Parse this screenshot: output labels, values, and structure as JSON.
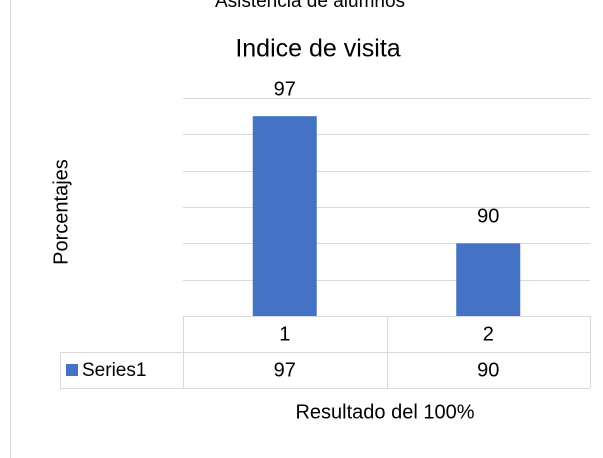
{
  "chart_data": {
    "type": "bar",
    "header_text": "Asistencia de alumnos",
    "title": "Indice de visita",
    "y_label": "Porcentajes",
    "x_label": "Resultado del 100%",
    "categories": [
      "1",
      "2"
    ],
    "series": [
      {
        "name": "Series1",
        "color": "#4472c4",
        "values": [
          97,
          90
        ]
      }
    ],
    "ylim": [
      86,
      98
    ],
    "yticks": [
      86,
      88,
      90,
      92,
      94,
      96,
      98
    ],
    "grid": true
  }
}
